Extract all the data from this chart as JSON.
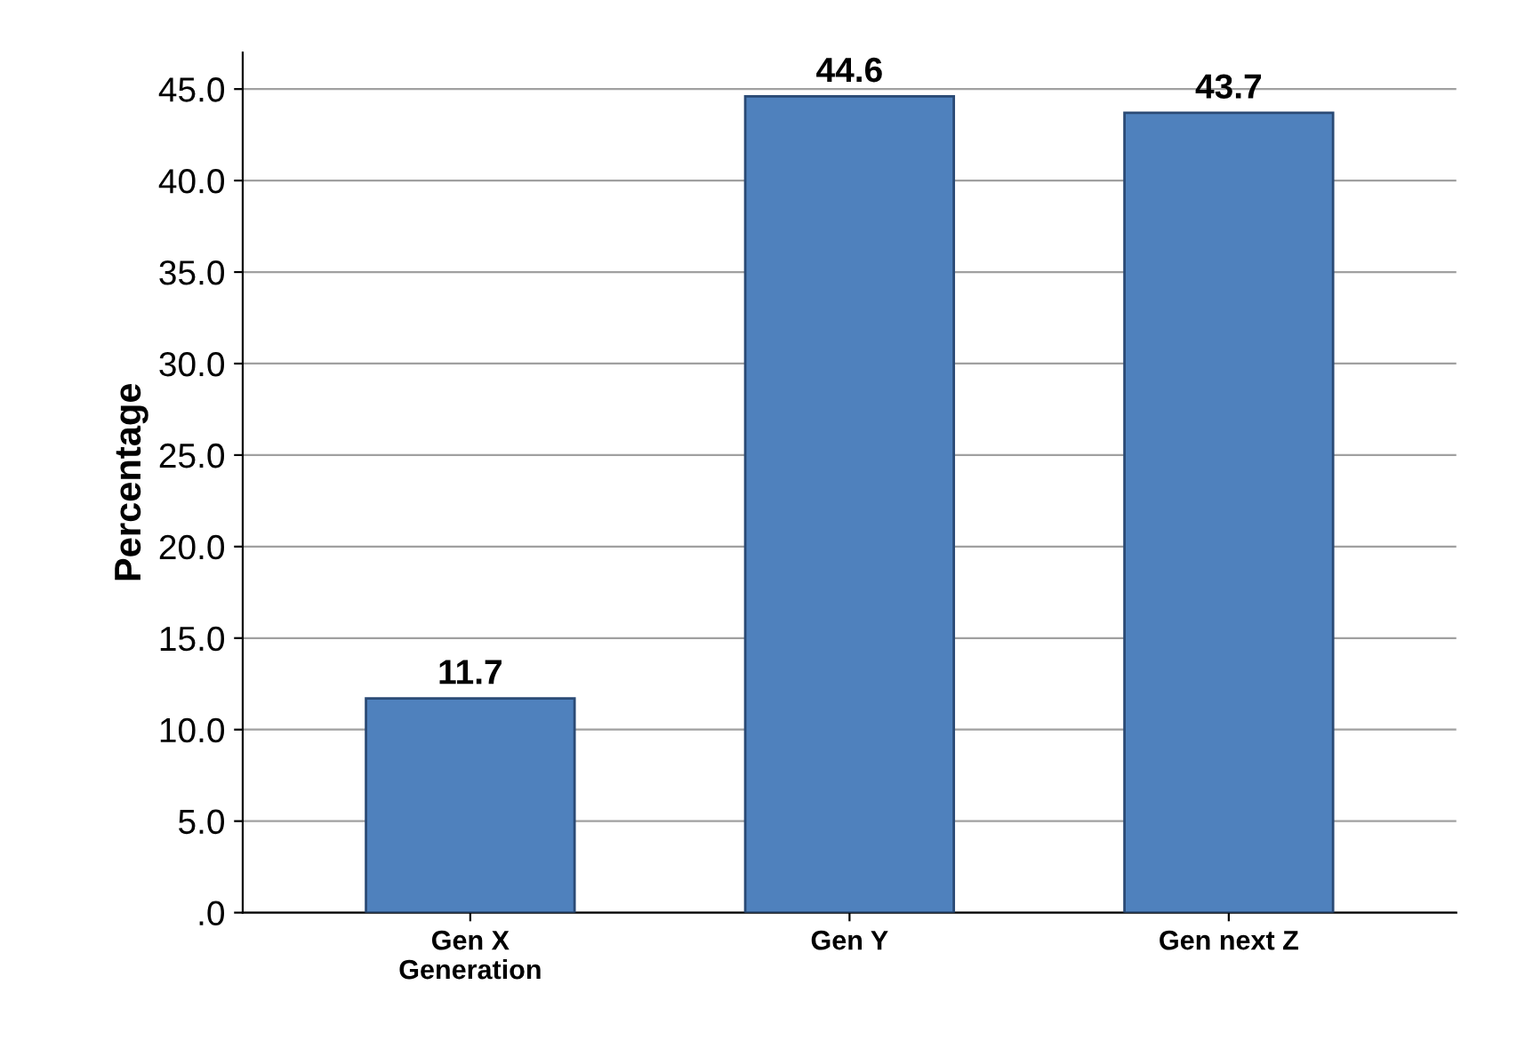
{
  "chart_data": {
    "type": "bar",
    "ylabel": "Percentage",
    "categories": [
      "Gen X\nGeneration",
      "Gen Y",
      "Gen next Z"
    ],
    "values": [
      11.7,
      44.6,
      43.7
    ],
    "color": "#4f81bd",
    "data_labels": true,
    "ylim": [
      0,
      47
    ],
    "yticks": [
      {
        "value": 0,
        "label": ".0"
      },
      {
        "value": 5,
        "label": "5.0"
      },
      {
        "value": 10,
        "label": "10.0"
      },
      {
        "value": 15,
        "label": "15.0"
      },
      {
        "value": 20,
        "label": "20.0"
      },
      {
        "value": 25,
        "label": "25.0"
      },
      {
        "value": 30,
        "label": "30.0"
      },
      {
        "value": 35,
        "label": "35.0"
      },
      {
        "value": 40,
        "label": "40.0"
      },
      {
        "value": 45,
        "label": "45.0"
      }
    ],
    "grid": "y"
  }
}
